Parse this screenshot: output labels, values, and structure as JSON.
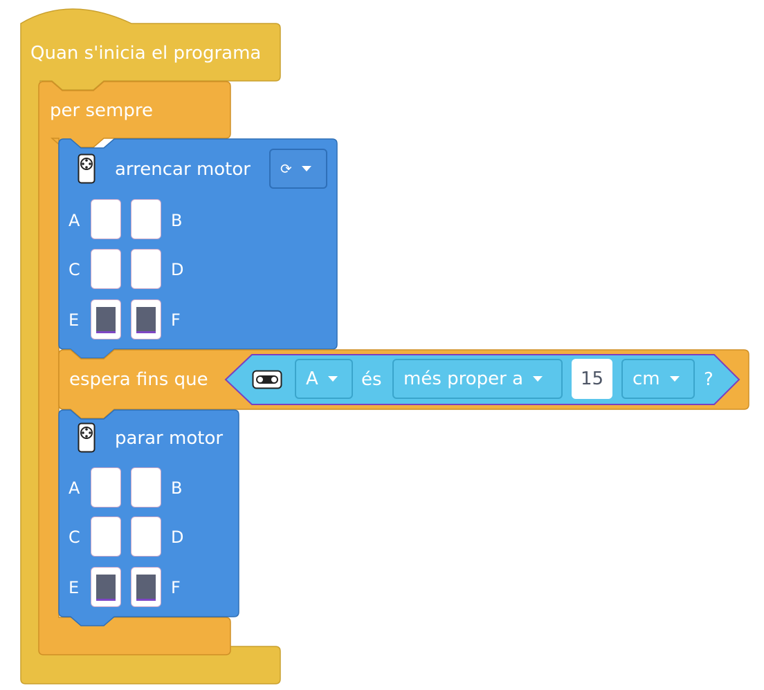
{
  "colors": {
    "event_block": "#eac043",
    "loop_block": "#f2af3f",
    "motor_block": "#4790e0",
    "sensor_block": "#5bc6ec",
    "port_on": "#5b6175"
  },
  "hat_block": {
    "label": "Quan s'inicia el programa"
  },
  "forever_block": {
    "label": "per sempre"
  },
  "start_motor_block": {
    "icon": "motor-icon",
    "label": "arrencar motor",
    "direction_icon": "rotate-clockwise-icon",
    "ports": [
      {
        "name": "A",
        "selected": false
      },
      {
        "name": "B",
        "selected": false
      },
      {
        "name": "C",
        "selected": false
      },
      {
        "name": "D",
        "selected": false
      },
      {
        "name": "E",
        "selected": true
      },
      {
        "name": "F",
        "selected": true
      }
    ]
  },
  "wait_block": {
    "label": "espera fins que",
    "condition": {
      "icon": "distance-sensor-icon",
      "port_value": "A",
      "is_label": "és",
      "comparison_value": "més proper a",
      "distance_value": "15",
      "unit_value": "cm",
      "question": "?"
    }
  },
  "stop_motor_block": {
    "icon": "motor-icon",
    "label": "parar motor",
    "ports": [
      {
        "name": "A",
        "selected": false
      },
      {
        "name": "B",
        "selected": false
      },
      {
        "name": "C",
        "selected": false
      },
      {
        "name": "D",
        "selected": false
      },
      {
        "name": "E",
        "selected": true
      },
      {
        "name": "F",
        "selected": true
      }
    ]
  }
}
